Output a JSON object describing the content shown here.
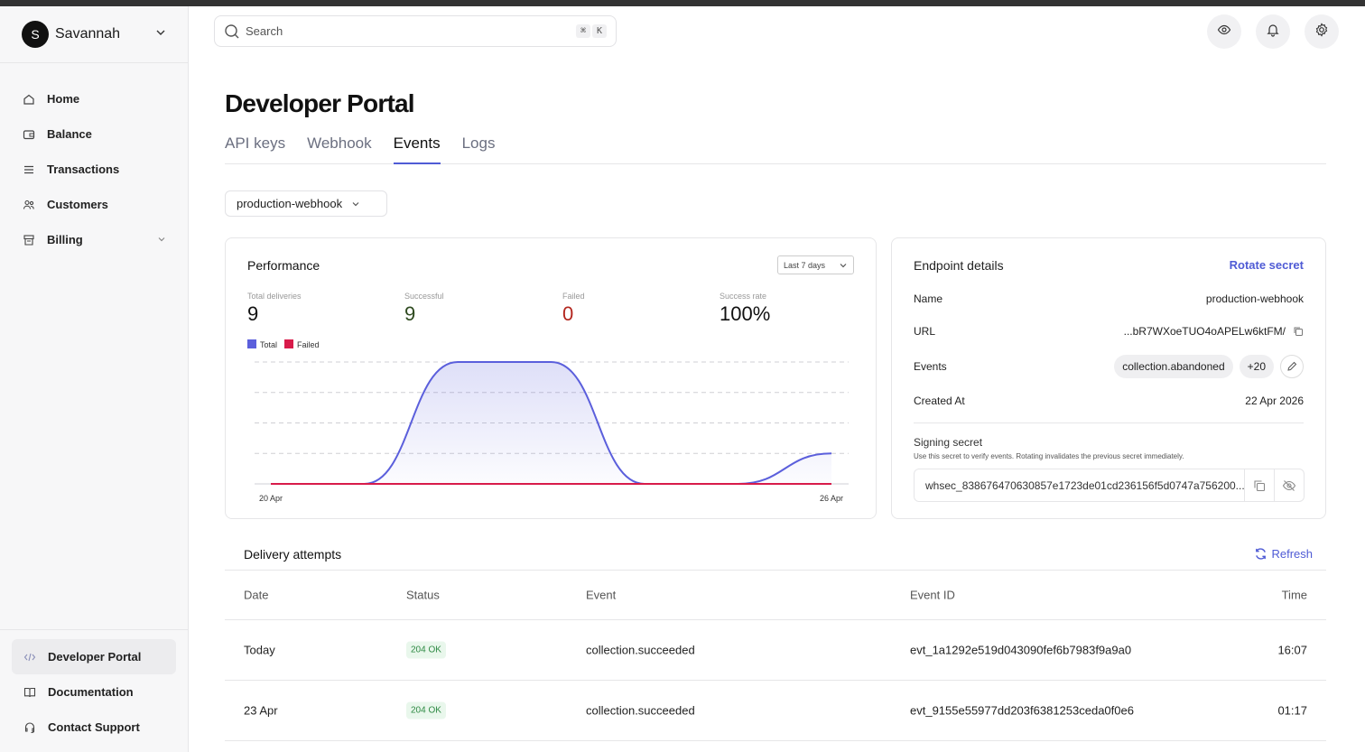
{
  "user": {
    "initial": "S",
    "name": "Savannah"
  },
  "sidebar": {
    "items": [
      {
        "label": "Home",
        "icon": "home-icon"
      },
      {
        "label": "Balance",
        "icon": "wallet-icon"
      },
      {
        "label": "Transactions",
        "icon": "list-icon"
      },
      {
        "label": "Customers",
        "icon": "users-icon"
      },
      {
        "label": "Billing",
        "icon": "receipt-icon"
      }
    ],
    "bottom": [
      {
        "label": "Developer Portal",
        "icon": "code-icon"
      },
      {
        "label": "Documentation",
        "icon": "book-icon"
      },
      {
        "label": "Contact Support",
        "icon": "headset-icon"
      }
    ]
  },
  "search": {
    "placeholder": "Search",
    "kbd1": "⌘",
    "kbd2": "K"
  },
  "page": {
    "title": "Developer Portal"
  },
  "tabs": [
    "API keys",
    "Webhook",
    "Events",
    "Logs"
  ],
  "webhook_select": "production-webhook",
  "performance": {
    "title": "Performance",
    "range": "Last 7 days",
    "stats": [
      {
        "label": "Total deliveries",
        "value": "9",
        "color": "#111111"
      },
      {
        "label": "Successful",
        "value": "9",
        "color": "#2e4a1f"
      },
      {
        "label": "Failed",
        "value": "0",
        "color": "#b3261e"
      },
      {
        "label": "Success rate",
        "value": "100%",
        "color": "#111111"
      }
    ],
    "legend": [
      {
        "name": "Total",
        "color": "#5b5fdc"
      },
      {
        "name": "Failed",
        "color": "#d81b4a"
      }
    ]
  },
  "chart_data": {
    "type": "area",
    "x": [
      "20 Apr",
      "21 Apr",
      "22 Apr",
      "23 Apr",
      "24 Apr",
      "25 Apr",
      "26 Apr"
    ],
    "tick_labels": [
      "20 Apr",
      "26 Apr"
    ],
    "series": [
      {
        "name": "Total",
        "values": [
          0,
          0,
          4,
          4,
          0,
          0,
          1
        ],
        "color": "#5b5fdc"
      },
      {
        "name": "Failed",
        "values": [
          0,
          0,
          0,
          0,
          0,
          0,
          0
        ],
        "color": "#d81b4a"
      }
    ],
    "ylim": [
      0,
      4
    ],
    "grid": true
  },
  "endpoint": {
    "title": "Endpoint details",
    "rotate_label": "Rotate secret",
    "name_label": "Name",
    "name_value": "production-webhook",
    "url_label": "URL",
    "url_value": "...bR7WXoeTUO4oAPELw6ktFM/",
    "events_label": "Events",
    "events_pill": "collection.abandoned",
    "events_more": "+20",
    "created_label": "Created At",
    "created_value": "22 Apr 2026",
    "secret_title": "Signing secret",
    "secret_hint": "Use this secret to verify events. Rotating invalidates the previous secret immediately.",
    "secret_value": "whsec_838676470630857e1723de01cd236156f5d0747a756200..."
  },
  "delivery": {
    "title": "Delivery attempts",
    "refresh_label": "Refresh",
    "columns": [
      "Date",
      "Status",
      "Event",
      "Event ID",
      "Time"
    ],
    "rows": [
      {
        "date": "Today",
        "status": "204 OK",
        "event": "collection.succeeded",
        "event_id": "evt_1a1292e519d043090fef6b7983f9a9a0",
        "time": "16:07"
      },
      {
        "date": "23 Apr",
        "status": "204 OK",
        "event": "collection.succeeded",
        "event_id": "evt_9155e55977dd203f6381253ceda0f0e6",
        "time": "01:17"
      }
    ]
  }
}
